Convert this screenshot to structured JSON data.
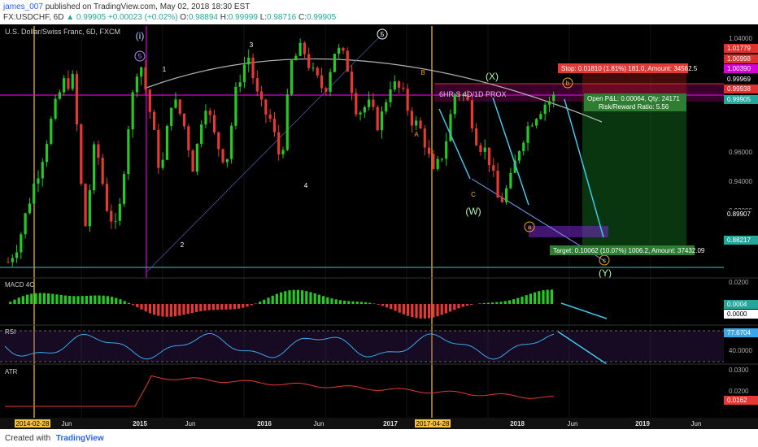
{
  "header": {
    "author": "james_007",
    "published": "published on TradingView.com, May 02, 2018 18:30 EST",
    "symbol": "FX:USDCHF, 6D",
    "last": "0.99905",
    "change": "+0.00023 (+0.02%)",
    "open_label": "O:",
    "open": "0.98894",
    "high_label": "H:",
    "high": "0.99999",
    "low_label": "L:",
    "low": "0.98716",
    "close_label": "C:",
    "close": "0.99905"
  },
  "footer": {
    "created_with": "Created with",
    "brand": "TradingView"
  },
  "chart_data": {
    "type": "candlestick",
    "title": "U.S. Dollar/Swiss Franc, 6D, FXCM",
    "price_axis": [
      "1.04000",
      "0.96000",
      "0.94000",
      "0.92000"
    ],
    "price_range": [
      0.875,
      1.05
    ],
    "time_axis": [
      "2014-02-28",
      "Jun",
      "2015",
      "Jun",
      "2016",
      "Jun",
      "2017",
      "2017-04-28",
      "2018",
      "Jun",
      "2019",
      "Jun"
    ],
    "time_axis_highlight": [
      "2014-02-28",
      "2017-04-28"
    ],
    "price_path": [
      0.885,
      0.9,
      0.93,
      0.955,
      0.985,
      1.01,
      1.012,
      0.905,
      0.97,
      0.925,
      0.905,
      0.98,
      1.03,
      0.99,
      0.945,
      1.0,
      0.985,
      0.95,
      1.0,
      0.97,
      0.955,
      1.01,
      1.03,
      0.995,
      0.985,
      0.955,
      1.025,
      1.035,
      1.015,
      1.005,
      1.035,
      1.025,
      0.99,
      0.995,
      0.98,
      1.01,
      1.005,
      0.985,
      0.975,
      0.945,
      0.965,
      1.005,
      1.0,
      0.97,
      0.96,
      0.925,
      0.94,
      0.97,
      0.985,
      0.995,
      1.0
    ],
    "price_labels": [
      {
        "value": "1.01779",
        "color": "#e03030"
      },
      {
        "value": "1.00998",
        "color": "#e03030"
      },
      {
        "value": "1.00390",
        "color": "#d500d5"
      },
      {
        "value": "0.99969",
        "color": "#ffffff"
      },
      {
        "value": "0.99938",
        "color": "#e03030"
      },
      {
        "value": "0.99905",
        "color": "#26a69a"
      },
      {
        "value": "0.89907",
        "color": "#ffffff"
      },
      {
        "value": "0.88217",
        "color": "#26a69a"
      }
    ],
    "wave_labels": [
      "(i)",
      "5",
      "1",
      "2",
      "3",
      "4",
      "5",
      "A",
      "B",
      "C",
      "(W)",
      "(X)",
      "a",
      "b",
      "c",
      "(Y)"
    ],
    "zone_label": "6HR S 4D/1D PROX",
    "position": {
      "stop": "Stop: 0.01810 (1.81%) 181.0, Amount: 34562.5",
      "open": "Open P&L: 0.00064, Qty: 24171",
      "ratio": "Risk/Reward Ratio: 5.56",
      "target": "Target: 0.10062 (10.07%) 1006.2, Amount: 37432.09"
    },
    "macd": {
      "title": "MACD 4C",
      "axis": [
        "0.0200"
      ],
      "labels": [
        "0.0004",
        "0.0000"
      ]
    },
    "rsi": {
      "title": "RSI",
      "axis": [
        "40.0000"
      ],
      "labels": [
        "77.6704"
      ]
    },
    "atr": {
      "title": "ATR",
      "axis": [
        "0.0300",
        "0.0200"
      ],
      "labels": [
        "0.0162"
      ]
    }
  }
}
